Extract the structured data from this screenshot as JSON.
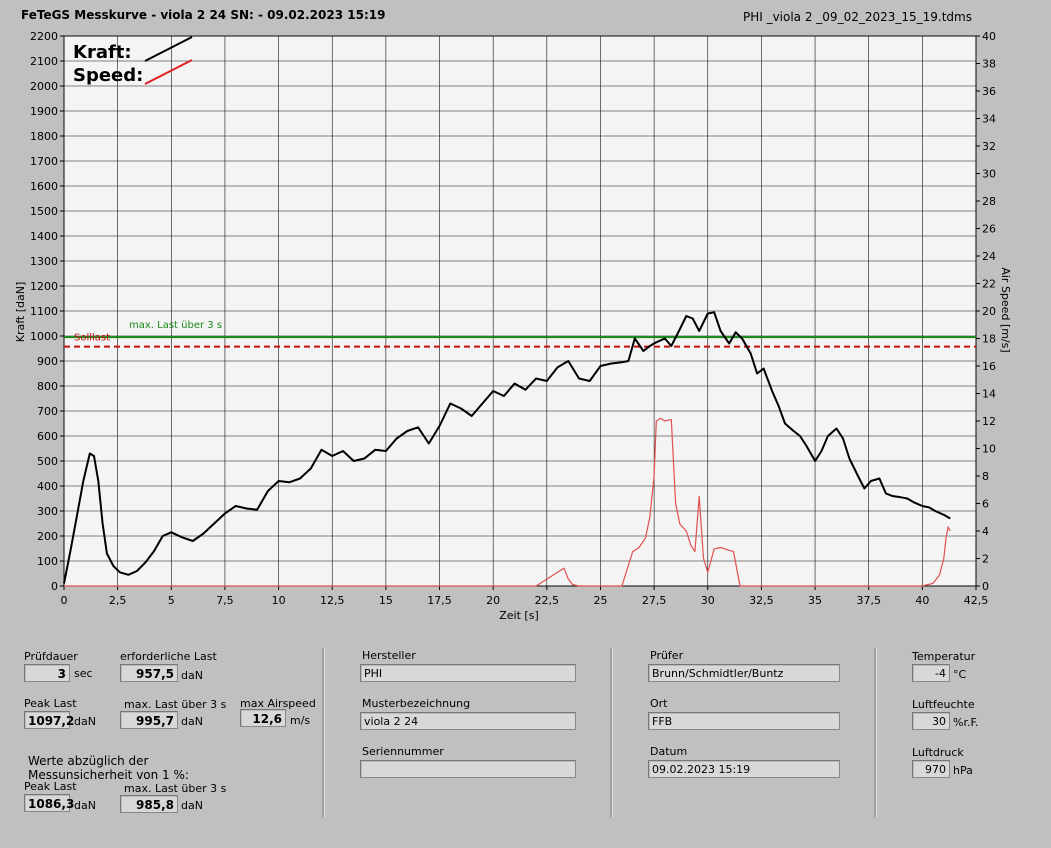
{
  "header": {
    "title": "FeTeGS Messkurve - viola 2 24  SN:  - 09.02.2023 15:19",
    "file": "PHI _viola 2 _09_02_2023_15_19.tdms"
  },
  "chart_data": {
    "type": "line",
    "xlabel": "Zeit [s]",
    "ylabel": "Kraft [daN]",
    "y2label": "Air Speed [m/s]",
    "xlim": [
      0,
      42.5
    ],
    "ylim": [
      0,
      2200
    ],
    "y2lim": [
      0,
      40
    ],
    "x_ticks": [
      "0",
      "2,5",
      "5",
      "7,5",
      "10",
      "12,5",
      "15",
      "17,5",
      "20",
      "22,5",
      "25",
      "27,5",
      "30",
      "32,5",
      "35",
      "37,5",
      "40",
      "42,5"
    ],
    "y_ticks": [
      "0",
      "100",
      "200",
      "300",
      "400",
      "500",
      "600",
      "700",
      "800",
      "900",
      "1000",
      "1100",
      "1200",
      "1300",
      "1400",
      "1500",
      "1600",
      "1700",
      "1800",
      "1900",
      "2000",
      "2100",
      "2200"
    ],
    "y2_ticks": [
      "0",
      "2",
      "4",
      "6",
      "8",
      "10",
      "12",
      "14",
      "16",
      "18",
      "20",
      "22",
      "24",
      "26",
      "28",
      "30",
      "32",
      "34",
      "36",
      "38",
      "40"
    ],
    "grid": true,
    "legend": [
      {
        "name": "Kraft:",
        "color": "#000000"
      },
      {
        "name": "Speed:",
        "color": "#e02020"
      }
    ],
    "reference_lines": [
      {
        "name": "max. Last über  3 s",
        "value": 995.7,
        "color": "#1a8a1a",
        "style": "solid"
      },
      {
        "name": "Solllast",
        "value": 957.5,
        "color": "#c01010",
        "style": "dashed"
      }
    ],
    "series": [
      {
        "name": "Kraft",
        "axis": "left",
        "color": "#000000",
        "x": [
          0,
          0.3,
          0.6,
          0.9,
          1.2,
          1.4,
          1.6,
          1.8,
          2.0,
          2.3,
          2.6,
          3.0,
          3.4,
          3.8,
          4.2,
          4.6,
          5.0,
          5.5,
          6.0,
          6.5,
          7.0,
          7.5,
          8.0,
          8.5,
          9.0,
          9.5,
          10.0,
          10.5,
          11.0,
          11.5,
          12.0,
          12.5,
          13.0,
          13.5,
          14.0,
          14.5,
          15.0,
          15.5,
          16.0,
          16.5,
          17.0,
          17.5,
          18.0,
          18.5,
          19.0,
          19.5,
          20.0,
          20.5,
          21.0,
          21.5,
          22.0,
          22.5,
          23.0,
          23.5,
          24.0,
          24.5,
          25.0,
          25.5,
          26.0,
          26.3,
          26.6,
          27.0,
          27.3,
          27.6,
          28.0,
          28.3,
          28.6,
          29.0,
          29.3,
          29.6,
          30.0,
          30.3,
          30.6,
          31.0,
          31.3,
          31.6,
          32.0,
          32.3,
          32.6,
          33.0,
          33.3,
          33.6,
          34.0,
          34.3,
          34.6,
          35.0,
          35.3,
          35.6,
          36.0,
          36.3,
          36.6,
          37.0,
          37.3,
          37.6,
          38.0,
          38.3,
          38.6,
          39.0,
          39.3,
          39.6,
          40.0,
          40.3,
          40.6,
          41.0,
          41.3
        ],
        "y": [
          10,
          140,
          280,
          420,
          530,
          520,
          420,
          250,
          130,
          80,
          55,
          45,
          60,
          95,
          140,
          200,
          215,
          195,
          180,
          210,
          250,
          290,
          320,
          310,
          305,
          380,
          420,
          415,
          430,
          470,
          545,
          520,
          540,
          500,
          510,
          545,
          540,
          590,
          620,
          635,
          570,
          640,
          730,
          710,
          680,
          730,
          780,
          760,
          810,
          785,
          830,
          820,
          875,
          900,
          830,
          820,
          880,
          890,
          895,
          900,
          990,
          940,
          960,
          975,
          990,
          960,
          1010,
          1080,
          1070,
          1020,
          1090,
          1095,
          1020,
          970,
          1015,
          990,
          930,
          850,
          870,
          780,
          720,
          650,
          620,
          600,
          560,
          500,
          540,
          600,
          630,
          590,
          510,
          440,
          390,
          420,
          430,
          370,
          360,
          355,
          350,
          335,
          320,
          315,
          300,
          285,
          270
        ]
      },
      {
        "name": "Speed",
        "axis": "right",
        "color": "#e05050",
        "x": [
          0,
          22.0,
          22.5,
          23.0,
          23.3,
          23.5,
          23.7,
          24.0,
          26.0,
          26.5,
          26.8,
          27.1,
          27.3,
          27.5,
          27.6,
          27.8,
          28.0,
          28.3,
          28.5,
          28.7,
          29.0,
          29.2,
          29.4,
          29.6,
          29.8,
          30.0,
          30.3,
          30.6,
          31.0,
          31.2,
          31.5,
          32.0,
          35.0,
          38.0,
          40.0,
          40.5,
          40.8,
          41.0,
          41.1,
          41.2,
          41.3
        ],
        "y": [
          0,
          0,
          0.5,
          1.0,
          1.3,
          0.5,
          0.1,
          0,
          0,
          2.5,
          2.8,
          3.5,
          5.0,
          8.0,
          12.0,
          12.2,
          12.0,
          12.1,
          6.0,
          4.5,
          4.0,
          3.0,
          2.5,
          6.5,
          2.0,
          1.0,
          2.7,
          2.8,
          2.6,
          2.5,
          0,
          0,
          0,
          0,
          0,
          0.2,
          0.8,
          2.0,
          3.5,
          4.3,
          4.0
        ]
      }
    ]
  },
  "panel": {
    "pruefdauer_label": "Prüfdauer",
    "pruefdauer_value": "3",
    "pruefdauer_unit": "sec",
    "erf_last_label": "erforderliche Last",
    "erf_last_value": "957,5",
    "erf_last_unit": "daN",
    "peak_last_label": "Peak Last",
    "peak_last_value": "1097,2",
    "peak_last_unit": "daN",
    "max_last_label": "max. Last über  3 s",
    "max_last_value": "995,7",
    "max_last_unit": "daN",
    "max_airspeed_label": "max Airspeed",
    "max_airspeed_value": "12,6",
    "max_airspeed_unit": "m/s",
    "werte_label_1": "Werte abzüglich der",
    "werte_label_2": "Messunsicherheit von 1  %:",
    "peak_last2_label": "Peak Last",
    "peak_last2_value": "1086,3",
    "peak_last2_unit": "daN",
    "max_last2_label": "max. Last über  3 s",
    "max_last2_value": "985,8",
    "max_last2_unit": "daN",
    "hersteller_label": "Hersteller",
    "hersteller_value": "PHI",
    "muster_label": "Musterbezeichnung",
    "muster_value": "viola 2 24",
    "serien_label": "Seriennummer",
    "serien_value": "",
    "pruefer_label": "Prüfer",
    "pruefer_value": "Brunn/Schmidtler/Buntz",
    "ort_label": "Ort",
    "ort_value": "FFB",
    "datum_label": "Datum",
    "datum_value": "09.02.2023 15:19",
    "temp_label": "Temperatur",
    "temp_value": "-4",
    "temp_unit": "°C",
    "feuchte_label": "Luftfeuchte",
    "feuchte_value": "30",
    "feuchte_unit": "%r.F.",
    "druck_label": "Luftdruck",
    "druck_value": "970",
    "druck_unit": "hPa"
  }
}
